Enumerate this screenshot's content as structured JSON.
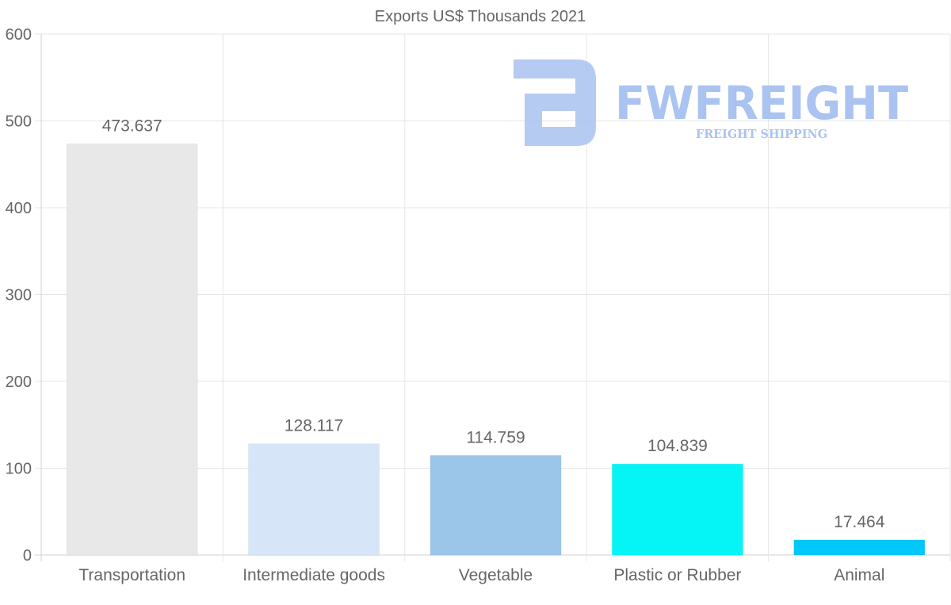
{
  "chart_data": {
    "type": "bar",
    "title": "Exports US$ Thousands 2021",
    "categories": [
      "Transportation",
      "Intermediate goods",
      "Vegetable",
      "Plastic or Rubber",
      "Animal"
    ],
    "values": [
      473.637,
      128.117,
      114.759,
      104.839,
      17.464
    ],
    "value_labels": [
      "473.637",
      "128.117",
      "114.759",
      "104.839",
      "17.464"
    ],
    "colors": [
      "#e8e8e8",
      "#d6e6f8",
      "#9cc5ea",
      "#05f5f7",
      "#00c8f8"
    ],
    "ylim": [
      0,
      600
    ],
    "yticks": [
      0,
      100,
      200,
      300,
      400,
      500,
      600
    ],
    "grid": true,
    "xlabel": "",
    "ylabel": ""
  },
  "watermark": {
    "name": "FWFREIGHT",
    "tagline": "FREIGHT SHIPPING",
    "color": "#aac3f0"
  }
}
